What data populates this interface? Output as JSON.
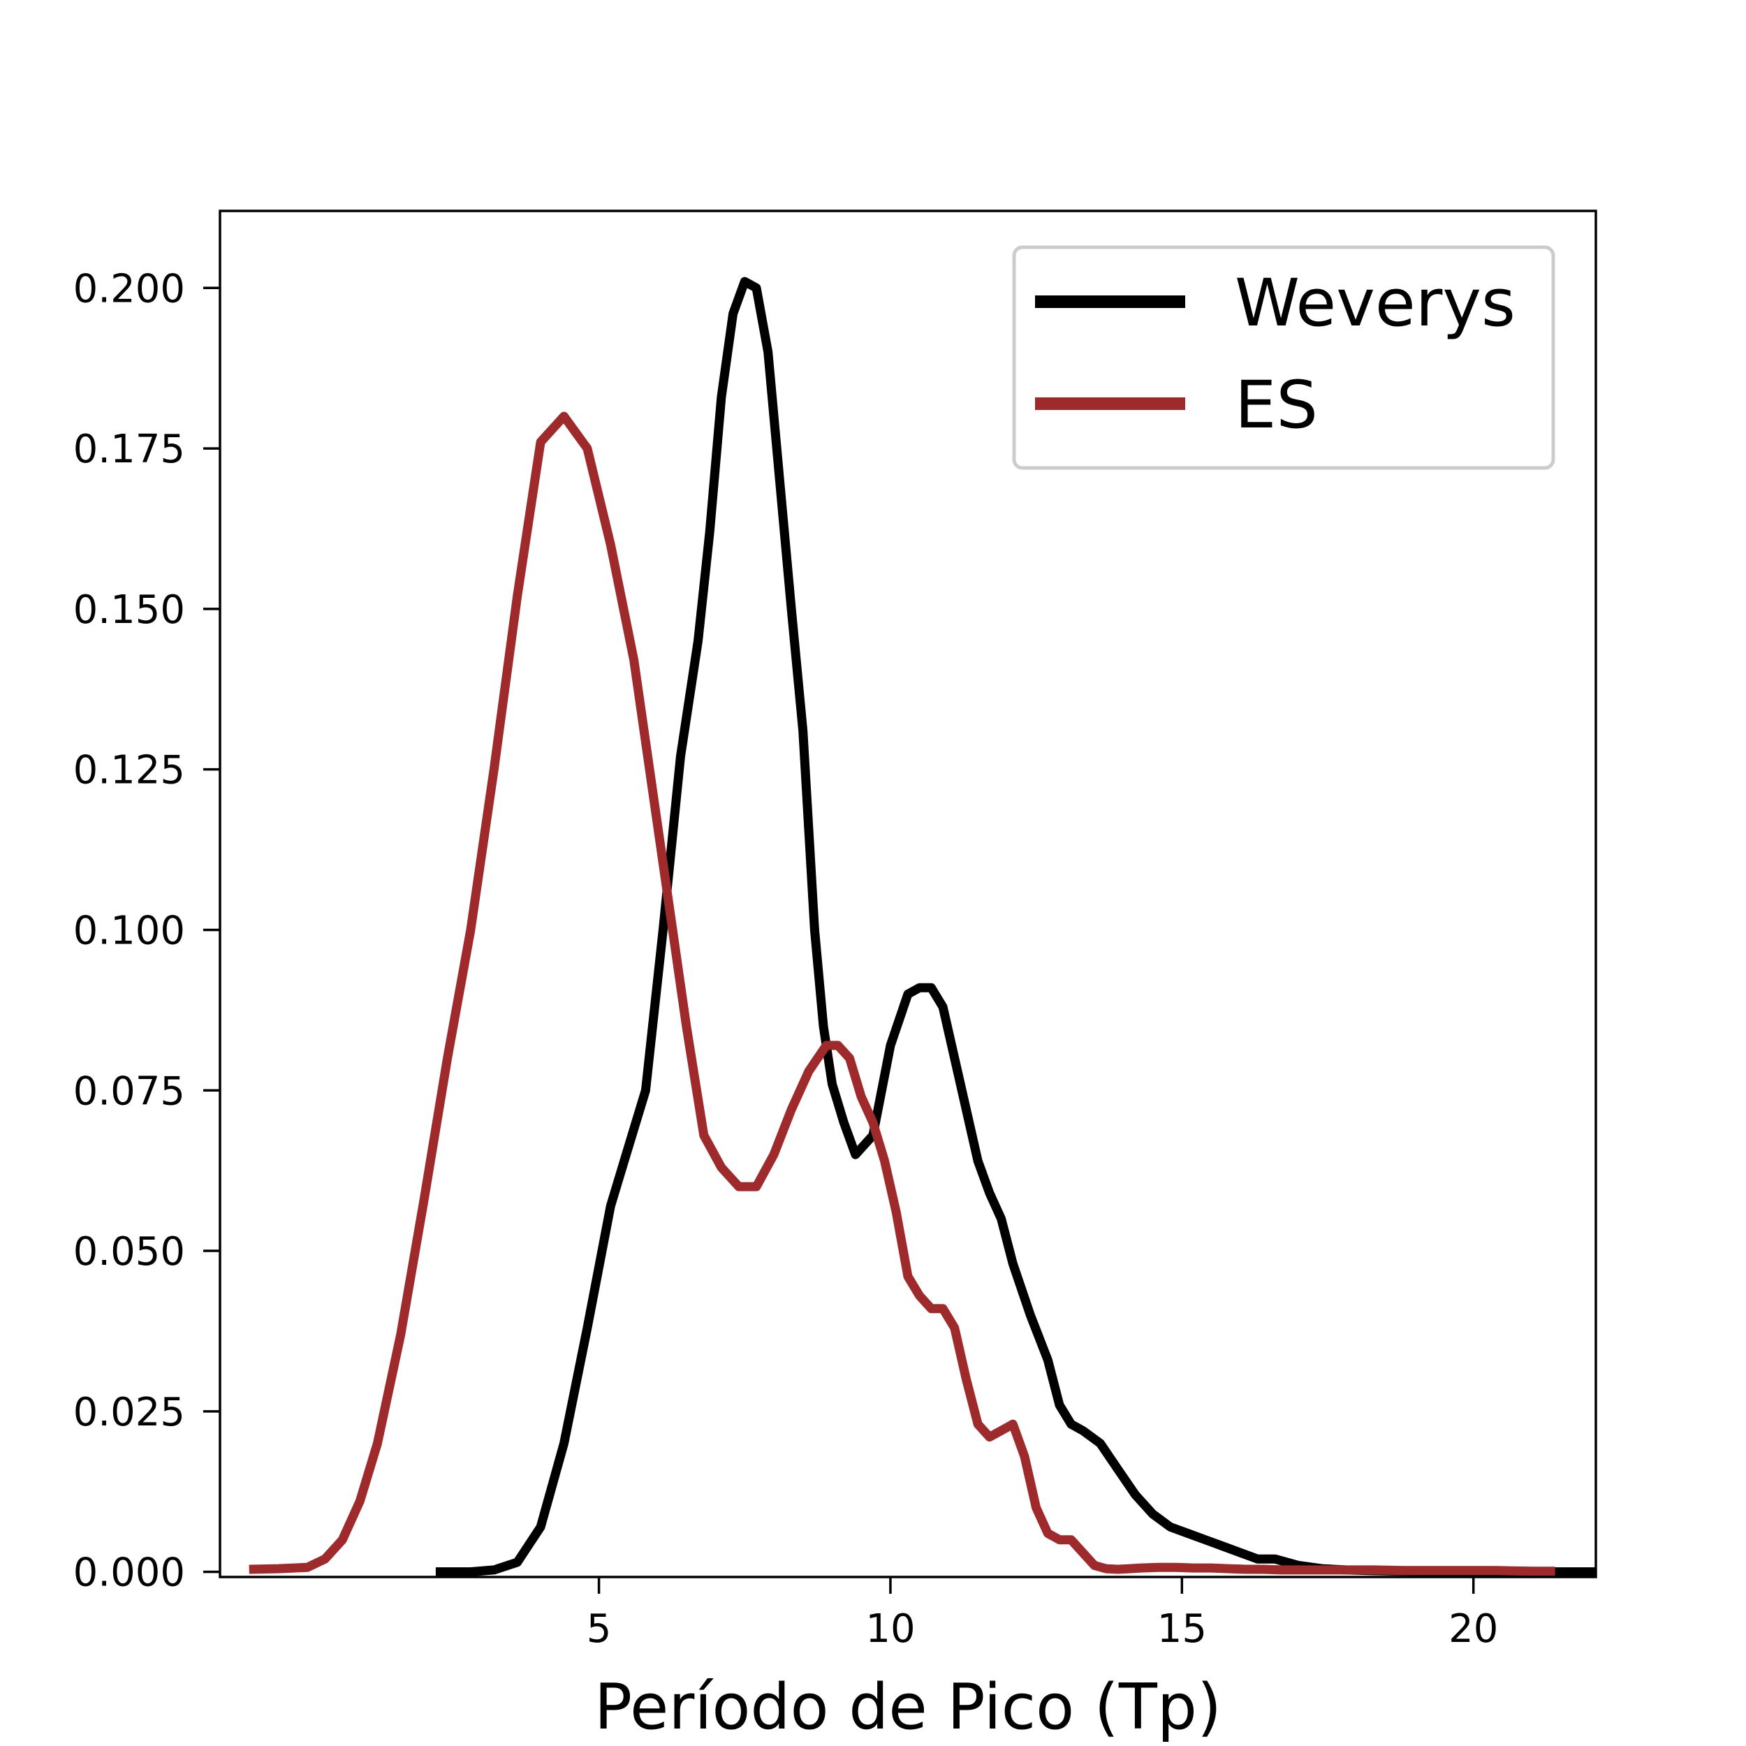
{
  "chart_data": {
    "type": "line",
    "title": "",
    "xlabel": "Período de Pico (Tp)",
    "ylabel": "",
    "xlim": [
      -1.5,
      22.1
    ],
    "ylim": [
      -0.0008,
      0.212
    ],
    "xticks": [
      5,
      10,
      15,
      20
    ],
    "xtick_labels": [
      "5",
      "10",
      "15",
      "20"
    ],
    "yticks": [
      0.0,
      0.025,
      0.05,
      0.075,
      0.1,
      0.125,
      0.15,
      0.175,
      0.2
    ],
    "ytick_labels": [
      "0.000",
      "0.025",
      "0.050",
      "0.075",
      "0.100",
      "0.125",
      "0.150",
      "0.175",
      "0.200"
    ],
    "grid": false,
    "legend_position": "top-right",
    "series": [
      {
        "name": "Weverys",
        "color": "#000000",
        "x": [
          2.2,
          2.8,
          3.2,
          3.6,
          4.0,
          4.4,
          4.8,
          5.2,
          5.5,
          5.8,
          6.1,
          6.4,
          6.7,
          6.9,
          7.1,
          7.3,
          7.5,
          7.7,
          7.9,
          8.1,
          8.3,
          8.5,
          8.7,
          8.85,
          9.0,
          9.2,
          9.4,
          9.7,
          10.0,
          10.3,
          10.5,
          10.7,
          10.9,
          11.1,
          11.3,
          11.5,
          11.7,
          11.9,
          12.1,
          12.4,
          12.7,
          12.9,
          13.1,
          13.3,
          13.6,
          13.9,
          14.2,
          14.5,
          14.8,
          15.1,
          15.4,
          15.7,
          16.0,
          16.3,
          16.6,
          17.0,
          17.4,
          17.8,
          18.2,
          18.8,
          19.5,
          20.5,
          21.5,
          22.5,
          23.6
        ],
        "y": [
          0.0,
          0.0,
          0.0003,
          0.0015,
          0.007,
          0.02,
          0.038,
          0.057,
          0.066,
          0.075,
          0.1,
          0.127,
          0.145,
          0.162,
          0.183,
          0.196,
          0.201,
          0.2,
          0.19,
          0.17,
          0.15,
          0.131,
          0.1,
          0.085,
          0.076,
          0.07,
          0.065,
          0.068,
          0.082,
          0.09,
          0.091,
          0.091,
          0.088,
          0.08,
          0.072,
          0.064,
          0.059,
          0.055,
          0.048,
          0.04,
          0.033,
          0.026,
          0.023,
          0.022,
          0.02,
          0.016,
          0.012,
          0.009,
          0.007,
          0.006,
          0.005,
          0.004,
          0.003,
          0.002,
          0.002,
          0.001,
          0.0005,
          0.0003,
          0.0002,
          0.0001,
          0.0,
          0.0,
          0.0,
          0.0,
          0.0
        ]
      },
      {
        "name": "ES",
        "color": "#9e2a2b",
        "x": [
          -1.0,
          -0.5,
          0.0,
          0.3,
          0.6,
          0.9,
          1.2,
          1.6,
          2.0,
          2.4,
          2.8,
          3.2,
          3.6,
          4.0,
          4.4,
          4.8,
          5.2,
          5.6,
          5.9,
          6.2,
          6.5,
          6.8,
          7.1,
          7.4,
          7.7,
          8.0,
          8.3,
          8.6,
          8.9,
          9.1,
          9.3,
          9.5,
          9.7,
          9.9,
          10.1,
          10.3,
          10.5,
          10.7,
          10.9,
          11.1,
          11.3,
          11.5,
          11.7,
          11.9,
          12.1,
          12.3,
          12.5,
          12.7,
          12.9,
          13.1,
          13.3,
          13.5,
          13.7,
          13.9,
          14.1,
          14.3,
          14.6,
          14.9,
          15.2,
          15.5,
          15.8,
          16.1,
          16.4,
          16.7,
          17.0,
          17.3,
          17.6,
          17.9,
          18.3,
          18.8,
          19.4,
          19.9,
          20.4,
          21.0,
          21.4
        ],
        "y": [
          0.0004,
          0.0005,
          0.0007,
          0.002,
          0.005,
          0.011,
          0.02,
          0.037,
          0.058,
          0.08,
          0.1,
          0.125,
          0.152,
          0.176,
          0.18,
          0.175,
          0.16,
          0.142,
          0.123,
          0.104,
          0.085,
          0.068,
          0.063,
          0.06,
          0.06,
          0.065,
          0.072,
          0.078,
          0.082,
          0.082,
          0.08,
          0.074,
          0.07,
          0.064,
          0.056,
          0.046,
          0.043,
          0.041,
          0.041,
          0.038,
          0.03,
          0.023,
          0.021,
          0.022,
          0.023,
          0.018,
          0.01,
          0.006,
          0.005,
          0.005,
          0.003,
          0.001,
          0.0005,
          0.0004,
          0.0005,
          0.0006,
          0.0007,
          0.0007,
          0.0006,
          0.0006,
          0.0005,
          0.0004,
          0.0004,
          0.0003,
          0.0003,
          0.0003,
          0.0003,
          0.0003,
          0.0003,
          0.0002,
          0.0002,
          0.0002,
          0.0002,
          0.0001,
          0.0001
        ]
      }
    ]
  }
}
